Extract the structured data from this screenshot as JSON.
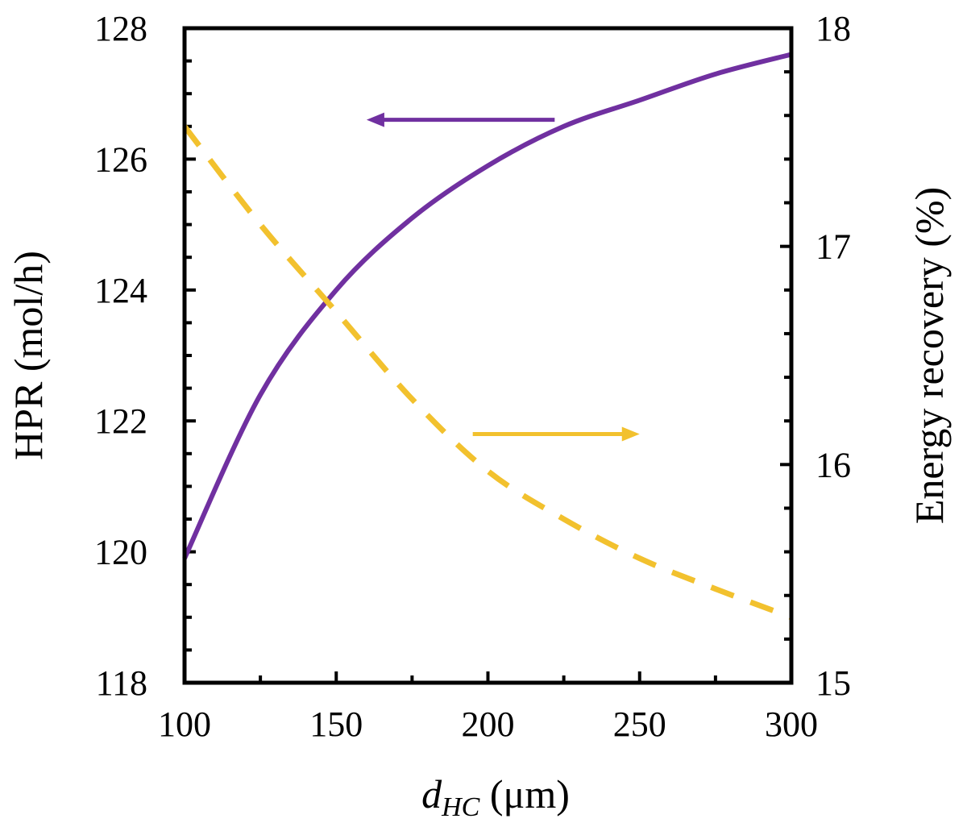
{
  "chart_data": {
    "type": "line",
    "x": [
      100,
      125,
      150,
      175,
      200,
      225,
      250,
      275,
      300
    ],
    "xlim": [
      100,
      300
    ],
    "xticks": [
      100,
      150,
      200,
      250,
      300
    ],
    "xlabel": {
      "italic": "d",
      "sub": "HC",
      "unit": " (μm)"
    },
    "ylabel_left": "HPR (mol/h)",
    "ylim_left": [
      118,
      128
    ],
    "yticks_left": [
      118,
      120,
      122,
      124,
      126,
      128
    ],
    "ylabel_right": "Energy recovery (%)",
    "ylim_right": [
      15,
      18
    ],
    "yticks_right": [
      15,
      16,
      17,
      18
    ],
    "series": [
      {
        "axis": "left",
        "color": "#7030a0",
        "style": "solid",
        "values": [
          119.9,
          122.4,
          124.0,
          125.1,
          125.9,
          126.5,
          126.9,
          127.3,
          127.6
        ]
      },
      {
        "axis": "right",
        "color": "#f2c12e",
        "style": "dashed",
        "values": [
          17.55,
          17.1,
          16.7,
          16.3,
          15.97,
          15.75,
          15.57,
          15.43,
          15.3
        ]
      }
    ],
    "annotations": [
      {
        "type": "arrow",
        "direction": "left",
        "color": "#7030a0",
        "from": [
          222,
          126.6
        ],
        "to": [
          160,
          126.6
        ]
      },
      {
        "type": "arrow",
        "direction": "right",
        "color": "#f2c12e",
        "from": [
          195,
          121.8
        ],
        "to": [
          250,
          121.8
        ]
      }
    ]
  }
}
